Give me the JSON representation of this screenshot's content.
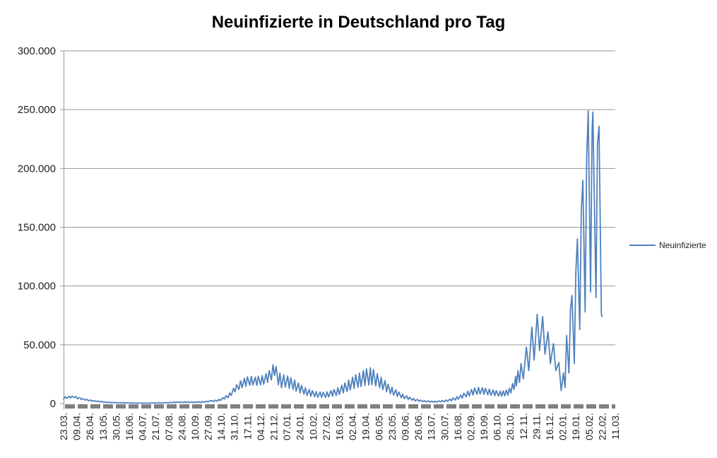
{
  "title": "Neuinfizierte in Deutschland pro Tag",
  "legend": {
    "label": "Neuinfizierte",
    "color": "#4F81BD",
    "position": "right"
  },
  "colors": {
    "series": "#4F81BD",
    "gridline": "#969696",
    "axis": "#969696",
    "zero_band": "#808080",
    "text": "#1f1f1f",
    "background": "#FFFFFF"
  },
  "chart_data": {
    "type": "line",
    "title": "Neuinfizierte in Deutschland pro Tag",
    "xlabel": "",
    "ylabel": "",
    "grid": true,
    "legend_position": "right",
    "y_axis": {
      "min": 0,
      "max": 300000,
      "tick_values": [
        0,
        50000,
        100000,
        150000,
        200000,
        250000,
        300000
      ],
      "tick_labels": [
        "0",
        "50.000",
        "100.000",
        "150.000",
        "200.000",
        "250.000",
        "300.000"
      ]
    },
    "x_axis": {
      "tick_labels": [
        "23.03.",
        "09.04.",
        "26.04.",
        "13.05.",
        "30.05.",
        "16.06.",
        "04.07.",
        "21.07.",
        "07.08.",
        "24.08.",
        "10.09.",
        "27.09.",
        "14.10.",
        "31.10.",
        "17.11.",
        "04.12.",
        "21.12.",
        "07.01.",
        "24.01.",
        "10.02.",
        "27.02.",
        "16.03.",
        "02.04.",
        "19.04.",
        "06.05.",
        "23.05.",
        "09.06.",
        "26.06.",
        "13.07.",
        "30.07.",
        "16.08.",
        "02.09.",
        "19.09.",
        "06.10.",
        "26.10.",
        "12.11.",
        "29.11.",
        "16.12.",
        "02.01.",
        "19.01.",
        "05.02.",
        "22.02.",
        "11.03."
      ],
      "tick_interval_days": 17,
      "x_unit": "days since first category (23.03.)",
      "categories_total": 714
    },
    "series": [
      {
        "name": "Neuinfizierte",
        "color": "#4F81BD",
        "points": [
          [
            0,
            4000
          ],
          [
            2,
            5800
          ],
          [
            4,
            4300
          ],
          [
            7,
            6200
          ],
          [
            9,
            4800
          ],
          [
            11,
            6300
          ],
          [
            14,
            5000
          ],
          [
            16,
            6000
          ],
          [
            18,
            4000
          ],
          [
            21,
            5100
          ],
          [
            23,
            3400
          ],
          [
            25,
            4300
          ],
          [
            28,
            2900
          ],
          [
            30,
            3700
          ],
          [
            32,
            2400
          ],
          [
            35,
            3000
          ],
          [
            37,
            2000
          ],
          [
            39,
            2600
          ],
          [
            42,
            1800
          ],
          [
            45,
            2300
          ],
          [
            47,
            1300
          ],
          [
            49,
            1900
          ],
          [
            52,
            1000
          ],
          [
            54,
            1500
          ],
          [
            56,
            800
          ],
          [
            59,
            1300
          ],
          [
            61,
            700
          ],
          [
            63,
            1100
          ],
          [
            66,
            600
          ],
          [
            68,
            950
          ],
          [
            70,
            500
          ],
          [
            73,
            850
          ],
          [
            75,
            450
          ],
          [
            77,
            750
          ],
          [
            80,
            400
          ],
          [
            82,
            700
          ],
          [
            84,
            380
          ],
          [
            87,
            650
          ],
          [
            89,
            350
          ],
          [
            91,
            600
          ],
          [
            94,
            330
          ],
          [
            96,
            580
          ],
          [
            98,
            320
          ],
          [
            101,
            560
          ],
          [
            103,
            310
          ],
          [
            105,
            550
          ],
          [
            108,
            300
          ],
          [
            110,
            560
          ],
          [
            112,
            300
          ],
          [
            115,
            580
          ],
          [
            117,
            320
          ],
          [
            119,
            600
          ],
          [
            122,
            340
          ],
          [
            124,
            650
          ],
          [
            126,
            380
          ],
          [
            129,
            750
          ],
          [
            131,
            450
          ],
          [
            133,
            900
          ],
          [
            136,
            550
          ],
          [
            138,
            1100
          ],
          [
            140,
            650
          ],
          [
            143,
            1300
          ],
          [
            145,
            750
          ],
          [
            147,
            1450
          ],
          [
            150,
            800
          ],
          [
            152,
            1500
          ],
          [
            154,
            850
          ],
          [
            157,
            1550
          ],
          [
            159,
            850
          ],
          [
            161,
            1500
          ],
          [
            164,
            820
          ],
          [
            166,
            1450
          ],
          [
            168,
            800
          ],
          [
            171,
            1500
          ],
          [
            173,
            850
          ],
          [
            175,
            1600
          ],
          [
            178,
            950
          ],
          [
            180,
            1800
          ],
          [
            182,
            1100
          ],
          [
            185,
            2100
          ],
          [
            187,
            1300
          ],
          [
            189,
            2300
          ],
          [
            192,
            2500
          ],
          [
            194,
            1600
          ],
          [
            196,
            2900
          ],
          [
            199,
            2000
          ],
          [
            201,
            3600
          ],
          [
            203,
            2600
          ],
          [
            206,
            5000
          ],
          [
            208,
            3800
          ],
          [
            210,
            6600
          ],
          [
            213,
            5000
          ],
          [
            215,
            9000
          ],
          [
            217,
            7000
          ],
          [
            220,
            13000
          ],
          [
            222,
            10000
          ],
          [
            224,
            16000
          ],
          [
            227,
            12000
          ],
          [
            229,
            19500
          ],
          [
            231,
            13500
          ],
          [
            234,
            21500
          ],
          [
            236,
            14500
          ],
          [
            238,
            22800
          ],
          [
            241,
            15500
          ],
          [
            243,
            23000
          ],
          [
            245,
            15800
          ],
          [
            248,
            22500
          ],
          [
            250,
            15500
          ],
          [
            252,
            23200
          ],
          [
            255,
            16000
          ],
          [
            257,
            23800
          ],
          [
            259,
            16500
          ],
          [
            262,
            25500
          ],
          [
            264,
            18000
          ],
          [
            266,
            28000
          ],
          [
            269,
            20000
          ],
          [
            271,
            33000
          ],
          [
            273,
            24000
          ],
          [
            275,
            31500
          ],
          [
            278,
            16000
          ],
          [
            280,
            26000
          ],
          [
            282,
            13500
          ],
          [
            285,
            24500
          ],
          [
            287,
            14000
          ],
          [
            290,
            23500
          ],
          [
            292,
            13000
          ],
          [
            294,
            22000
          ],
          [
            297,
            12000
          ],
          [
            299,
            20000
          ],
          [
            301,
            10500
          ],
          [
            304,
            17500
          ],
          [
            306,
            9000
          ],
          [
            308,
            15500
          ],
          [
            311,
            8000
          ],
          [
            313,
            13500
          ],
          [
            315,
            7000
          ],
          [
            318,
            12000
          ],
          [
            320,
            6200
          ],
          [
            322,
            11000
          ],
          [
            325,
            5800
          ],
          [
            327,
            10200
          ],
          [
            329,
            5400
          ],
          [
            332,
            9800
          ],
          [
            334,
            5200
          ],
          [
            336,
            9600
          ],
          [
            339,
            5300
          ],
          [
            341,
            10000
          ],
          [
            343,
            5600
          ],
          [
            346,
            11000
          ],
          [
            348,
            6300
          ],
          [
            350,
            12000
          ],
          [
            353,
            7000
          ],
          [
            355,
            13500
          ],
          [
            357,
            7800
          ],
          [
            360,
            15500
          ],
          [
            362,
            9000
          ],
          [
            364,
            17500
          ],
          [
            367,
            10200
          ],
          [
            369,
            20000
          ],
          [
            371,
            11500
          ],
          [
            374,
            22500
          ],
          [
            376,
            12800
          ],
          [
            378,
            24500
          ],
          [
            381,
            13800
          ],
          [
            383,
            26000
          ],
          [
            385,
            14500
          ],
          [
            388,
            28000
          ],
          [
            390,
            15200
          ],
          [
            392,
            29500
          ],
          [
            395,
            15800
          ],
          [
            397,
            30500
          ],
          [
            399,
            16000
          ],
          [
            401,
            29000
          ],
          [
            404,
            15000
          ],
          [
            406,
            25500
          ],
          [
            409,
            13500
          ],
          [
            411,
            22500
          ],
          [
            413,
            11800
          ],
          [
            416,
            19500
          ],
          [
            418,
            10000
          ],
          [
            420,
            16500
          ],
          [
            423,
            8500
          ],
          [
            425,
            14000
          ],
          [
            427,
            7200
          ],
          [
            430,
            11800
          ],
          [
            432,
            6000
          ],
          [
            434,
            9800
          ],
          [
            437,
            5000
          ],
          [
            439,
            8000
          ],
          [
            441,
            4100
          ],
          [
            444,
            6600
          ],
          [
            446,
            3400
          ],
          [
            448,
            5400
          ],
          [
            451,
            2800
          ],
          [
            453,
            4400
          ],
          [
            455,
            2300
          ],
          [
            458,
            3600
          ],
          [
            460,
            1900
          ],
          [
            462,
            3000
          ],
          [
            465,
            1600
          ],
          [
            467,
            2600
          ],
          [
            469,
            1400
          ],
          [
            472,
            2300
          ],
          [
            474,
            1250
          ],
          [
            476,
            2100
          ],
          [
            479,
            1200
          ],
          [
            481,
            2100
          ],
          [
            483,
            1250
          ],
          [
            486,
            2300
          ],
          [
            488,
            1400
          ],
          [
            490,
            2600
          ],
          [
            493,
            1650
          ],
          [
            495,
            3100
          ],
          [
            497,
            2000
          ],
          [
            500,
            3800
          ],
          [
            502,
            2400
          ],
          [
            504,
            4700
          ],
          [
            507,
            3000
          ],
          [
            509,
            5900
          ],
          [
            511,
            3700
          ],
          [
            514,
            7300
          ],
          [
            516,
            4600
          ],
          [
            518,
            8900
          ],
          [
            521,
            5600
          ],
          [
            523,
            10500
          ],
          [
            525,
            6500
          ],
          [
            528,
            12000
          ],
          [
            530,
            7300
          ],
          [
            532,
            13200
          ],
          [
            535,
            7900
          ],
          [
            537,
            13800
          ],
          [
            539,
            8100
          ],
          [
            542,
            13600
          ],
          [
            544,
            7900
          ],
          [
            546,
            13000
          ],
          [
            549,
            7500
          ],
          [
            551,
            12300
          ],
          [
            553,
            7100
          ],
          [
            556,
            11600
          ],
          [
            558,
            6700
          ],
          [
            560,
            11000
          ],
          [
            563,
            6400
          ],
          [
            565,
            10600
          ],
          [
            567,
            6300
          ],
          [
            569,
            10800
          ],
          [
            571,
            6500
          ],
          [
            573,
            11500
          ],
          [
            575,
            7200
          ],
          [
            577,
            13000
          ],
          [
            579,
            9000
          ],
          [
            581,
            17000
          ],
          [
            583,
            12000
          ],
          [
            585,
            23000
          ],
          [
            586,
            15000
          ],
          [
            588,
            28000
          ],
          [
            590,
            18000
          ],
          [
            592,
            34000
          ],
          [
            595,
            21000
          ],
          [
            599,
            48000
          ],
          [
            602,
            28000
          ],
          [
            606,
            65000
          ],
          [
            609,
            37000
          ],
          [
            613,
            76000
          ],
          [
            616,
            45000
          ],
          [
            620,
            74000
          ],
          [
            623,
            42000
          ],
          [
            627,
            61000
          ],
          [
            630,
            34000
          ],
          [
            634,
            51000
          ],
          [
            637,
            28000
          ],
          [
            641,
            35000
          ],
          [
            644,
            11000
          ],
          [
            647,
            26000
          ],
          [
            649,
            13500
          ],
          [
            651,
            58000
          ],
          [
            654,
            26000
          ],
          [
            656,
            80000
          ],
          [
            658,
            92000
          ],
          [
            661,
            34000
          ],
          [
            663,
            112000
          ],
          [
            665,
            140000
          ],
          [
            668,
            63000
          ],
          [
            670,
            164000
          ],
          [
            672,
            190000
          ],
          [
            675,
            78000
          ],
          [
            677,
            208000
          ],
          [
            679,
            249000
          ],
          [
            682,
            95000
          ],
          [
            684,
            234000
          ],
          [
            685,
            248000
          ],
          [
            689,
            90000
          ],
          [
            691,
            220000
          ],
          [
            693,
            236000
          ],
          [
            696,
            76000
          ],
          [
            697,
            74000
          ]
        ]
      }
    ]
  }
}
